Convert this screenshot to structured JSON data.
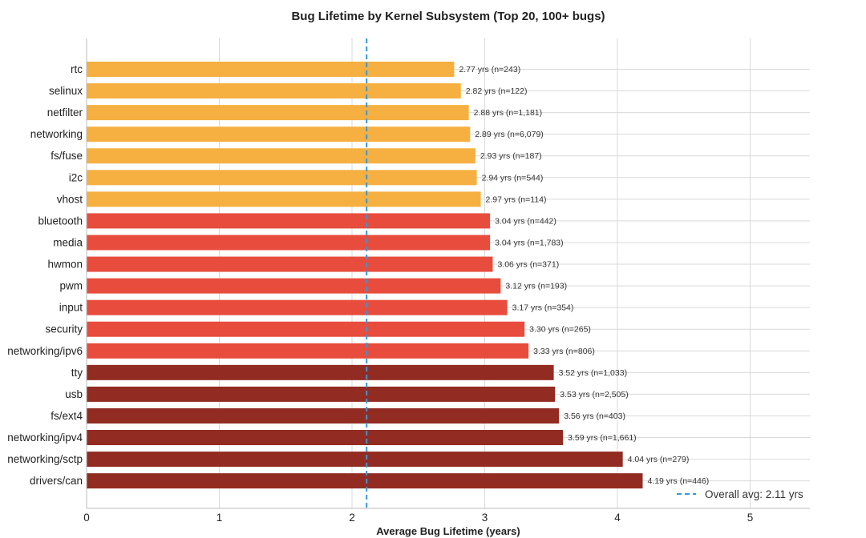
{
  "chart_data": {
    "type": "bar",
    "orientation": "horizontal",
    "title": "Bug Lifetime by Kernel Subsystem (Top 20, 100+ bugs)",
    "xlabel": "Average Bug Lifetime (years)",
    "ylabel": "",
    "xlim": [
      0,
      5.45
    ],
    "xticks": [
      "0",
      "1",
      "2",
      "3",
      "4",
      "5"
    ],
    "grid": true,
    "categories": [
      "rtc",
      "selinux",
      "netfilter",
      "networking",
      "fs/fuse",
      "i2c",
      "vhost",
      "bluetooth",
      "media",
      "hwmon",
      "pwm",
      "input",
      "security",
      "networking/ipv6",
      "tty",
      "usb",
      "fs/ext4",
      "networking/ipv4",
      "networking/sctp",
      "drivers/can"
    ],
    "values": [
      2.77,
      2.82,
      2.88,
      2.89,
      2.93,
      2.94,
      2.97,
      3.04,
      3.04,
      3.06,
      3.12,
      3.17,
      3.3,
      3.33,
      3.52,
      3.53,
      3.56,
      3.59,
      4.04,
      4.19
    ],
    "data_labels": [
      "2.77 yrs (n=243)",
      "2.82 yrs (n=122)",
      "2.88 yrs (n=1,181)",
      "2.89 yrs (n=6,079)",
      "2.93 yrs (n=187)",
      "2.94 yrs (n=544)",
      "2.97 yrs (n=114)",
      "3.04 yrs (n=442)",
      "3.04 yrs (n=1,783)",
      "3.06 yrs (n=371)",
      "3.12 yrs (n=193)",
      "3.17 yrs (n=354)",
      "3.30 yrs (n=265)",
      "3.33 yrs (n=806)",
      "3.52 yrs (n=1,033)",
      "3.53 yrs (n=2,505)",
      "3.56 yrs (n=403)",
      "3.59 yrs (n=1,661)",
      "4.04 yrs (n=279)",
      "4.19 yrs (n=446)"
    ],
    "colors": {
      "tier_low": "#f5b041",
      "tier_mid": "#e74c3c",
      "tier_high": "#922b21",
      "avg_line": "#3498db",
      "grid": "#d9d9d9",
      "axis": "#bbbbbb"
    },
    "tier_thresholds": [
      3.0,
      3.5
    ],
    "reference_line": {
      "value": 2.11,
      "label": "Overall avg: 2.11 yrs"
    },
    "legend_position": "bottom-right"
  }
}
